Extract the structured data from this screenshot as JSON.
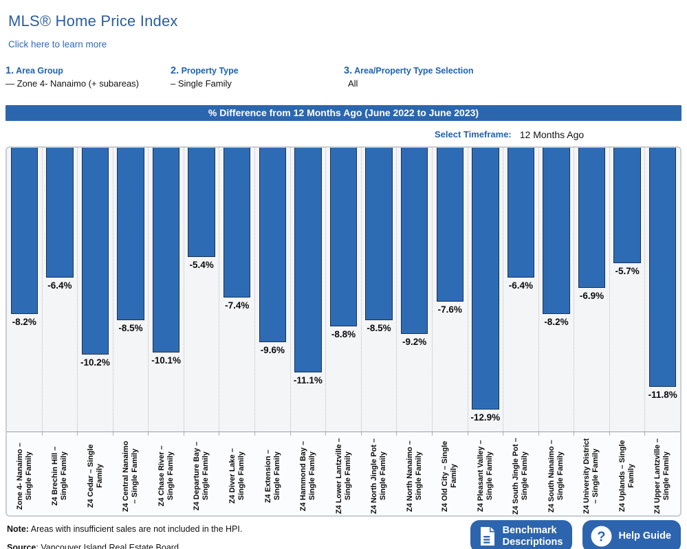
{
  "header": {
    "title": "MLS® Home Price Index",
    "learn_more": "Click here to learn more"
  },
  "selectors": [
    {
      "number": "1.",
      "label": "Area Group",
      "value": "— Zone 4- Nanaimo (+ subareas)"
    },
    {
      "number": "2.",
      "label": "Property Type",
      "value": "– Single Family"
    },
    {
      "number": "3.",
      "label": "Area/Property Type Selection",
      "value": "All"
    }
  ],
  "chart_title_bar": "% Difference from 12 Months Ago (June 2022 to June 2023)",
  "timeframe": {
    "label": "Select Timeframe:",
    "value": "12 Months Ago"
  },
  "chart_data": {
    "type": "bar",
    "title": "% Difference from 12 Months Ago (June 2022 to June 2023)",
    "categories": [
      "Zone 4- Nanaimo – Single Family",
      "Z4 Brechin Hill – Single Family",
      "Z4 Cedar – Single Family",
      "Z4 Central Nanaimo – Single Family",
      "Z4 Chase River – Single Family",
      "Z4 Departure Bay – Single Family",
      "Z4 Diver Lake – Single Family",
      "Z4 Extension – Single Family",
      "Z4 Hammond Bay – Single Family",
      "Z4 Lower Lantzville – Single Family",
      "Z4 North Jingle Pot – Single Family",
      "Z4 North Nanaimo – Single Family",
      "Z4 Old City – Single Family",
      "Z4 Pleasant Valley – Single Family",
      "Z4 South Jingle Pot – Single Family",
      "Z4 South Nanaimo – Single Family",
      "Z4 University District – Single Family",
      "Z4 Uplands – Single Family",
      "Z4 Upper Lantzville – Single Family"
    ],
    "values": [
      -8.2,
      -6.4,
      -10.2,
      -8.5,
      -10.1,
      -5.4,
      -7.4,
      -9.6,
      -11.1,
      -8.8,
      -8.5,
      -9.2,
      -7.6,
      -12.9,
      -6.4,
      -8.2,
      -6.9,
      -5.7,
      -11.8
    ],
    "value_labels": [
      "-8.2%",
      "-6.4%",
      "-10.2%",
      "-8.5%",
      "-10.1%",
      "-5.4%",
      "-7.4%",
      "-9.6%",
      "-11.1%",
      "-8.8%",
      "-8.5%",
      "-9.2%",
      "-7.6%",
      "-12.9%",
      "-6.4%",
      "-8.2%",
      "-6.9%",
      "-5.7%",
      "-11.8%"
    ],
    "ylim": [
      -14,
      0
    ],
    "xlabel": "",
    "ylabel": "",
    "legend": "none",
    "grid": "dotted-vertical-between-categories",
    "bar_color": "#2d6cb4",
    "bar_border_color": "#1b2f52"
  },
  "footer": {
    "note_label": "Note:",
    "note_text": " Areas with insufficient sales are not included in the HPI.",
    "source_label": "Source",
    "source_text": ": Vancouver Island Real Estate Board",
    "buttons": [
      {
        "label": "Benchmark\nDescriptions",
        "icon": "document-icon"
      },
      {
        "label": "Help Guide",
        "icon": "question-icon"
      }
    ]
  },
  "colors": {
    "accent_blue": "#2c67ae",
    "button_blue": "#2d64ae",
    "title_blue": "#2b5f9f",
    "bar_fill": "#2d6cb4",
    "bar_border": "#1b2f52",
    "panel_border": "#c9cdd1",
    "plot_background": "#f4f5f7"
  }
}
